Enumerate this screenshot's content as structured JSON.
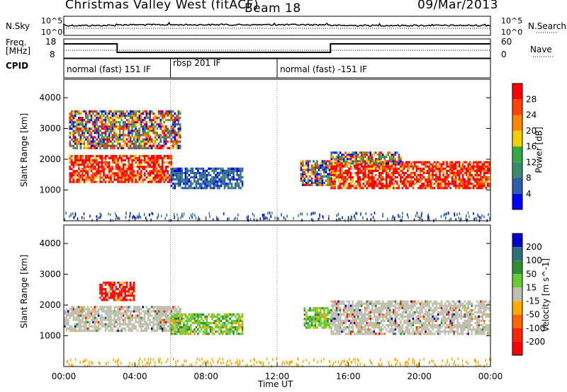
{
  "header": {
    "station": "Christmas Valley West (fitACF)",
    "beam": "Beam 18",
    "date": "09/Mar/2013"
  },
  "top_panels": {
    "nsky": {
      "label": "N.Sky",
      "ticks_left": [
        "10^5",
        "10^0"
      ],
      "ticks_right": [
        "10^5",
        "10^0"
      ],
      "right_label": "N.Search"
    },
    "freq": {
      "label_line1": "Freq.",
      "label_line2": "[MHz]",
      "ticks_left": [
        "18",
        "8"
      ],
      "ticks_right": [
        "60",
        "0"
      ],
      "right_label": "Nave"
    },
    "cpid": {
      "label": "CPID",
      "segments": [
        {
          "label": "normal (fast) 151 IF",
          "start_hour": 0,
          "end_hour": 6
        },
        {
          "label": "rbsp 201 IF",
          "start_hour": 6,
          "end_hour": 12
        },
        {
          "label": "normal (fast) -151 IF",
          "start_hour": 12,
          "end_hour": 24
        }
      ]
    }
  },
  "chart_data": [
    {
      "type": "heatmap",
      "quantity": "Power",
      "ylabel": "Slant Range [km]",
      "yticks": [
        "1000",
        "2000",
        "3000",
        "4000"
      ],
      "ylim": [
        0,
        4600
      ],
      "colorbar": {
        "label": "Power [dB]",
        "ticks": [
          "4",
          "8",
          "12",
          "16",
          "20",
          "24",
          "28"
        ],
        "colors": [
          "#0000ff",
          "#2d5fa8",
          "#3a8a6e",
          "#33aa44",
          "#f2d000",
          "#ff8800",
          "#ff4400",
          "#ff0000"
        ]
      },
      "regions": [
        {
          "x": [
            0.3,
            6.0
          ],
          "y": [
            1300,
            2200
          ],
          "level": "high"
        },
        {
          "x": [
            0.3,
            6.5
          ],
          "y": [
            2400,
            3600
          ],
          "level": "mixed"
        },
        {
          "x": [
            6.0,
            10.0
          ],
          "y": [
            1100,
            1800
          ],
          "level": "low"
        },
        {
          "x": [
            13.3,
            15.0
          ],
          "y": [
            1200,
            2000
          ],
          "level": "mixed"
        },
        {
          "x": [
            15.0,
            24.0
          ],
          "y": [
            1100,
            2000
          ],
          "level": "high"
        },
        {
          "x": [
            15.0,
            19.0
          ],
          "y": [
            1900,
            2300
          ],
          "level": "mixed"
        }
      ]
    },
    {
      "type": "heatmap",
      "quantity": "Velocity",
      "xlabel": "Time UT",
      "xticks": [
        "00:00",
        "04:00",
        "08:00",
        "12:00",
        "16:00",
        "20:00",
        "00:00"
      ],
      "ylabel": "Slant Range [km]",
      "yticks": [
        "1000",
        "2000",
        "3000",
        "4000"
      ],
      "ylim": [
        0,
        4600
      ],
      "colorbar": {
        "label": "Velocity [m s^-1]",
        "ticks": [
          "200",
          "100",
          "50",
          "15",
          "-15",
          "-50",
          "-100",
          "-200"
        ],
        "colors": [
          "#0000cc",
          "#2d6f7a",
          "#2f8f2f",
          "#66cc33",
          "#c0c0b0",
          "#ffaa00",
          "#ff6600",
          "#ff2200",
          "#ff0000"
        ]
      },
      "regions": [
        {
          "x": [
            0.0,
            6.5
          ],
          "y": [
            1200,
            2000
          ],
          "level": "ground"
        },
        {
          "x": [
            2.0,
            4.0
          ],
          "y": [
            2200,
            2800
          ],
          "level": "negative"
        },
        {
          "x": [
            6.0,
            10.0
          ],
          "y": [
            1100,
            1800
          ],
          "level": "positive"
        },
        {
          "x": [
            13.5,
            15.0
          ],
          "y": [
            1300,
            2000
          ],
          "level": "positive"
        },
        {
          "x": [
            15.0,
            24.0
          ],
          "y": [
            1100,
            2200
          ],
          "level": "ground"
        }
      ]
    }
  ]
}
